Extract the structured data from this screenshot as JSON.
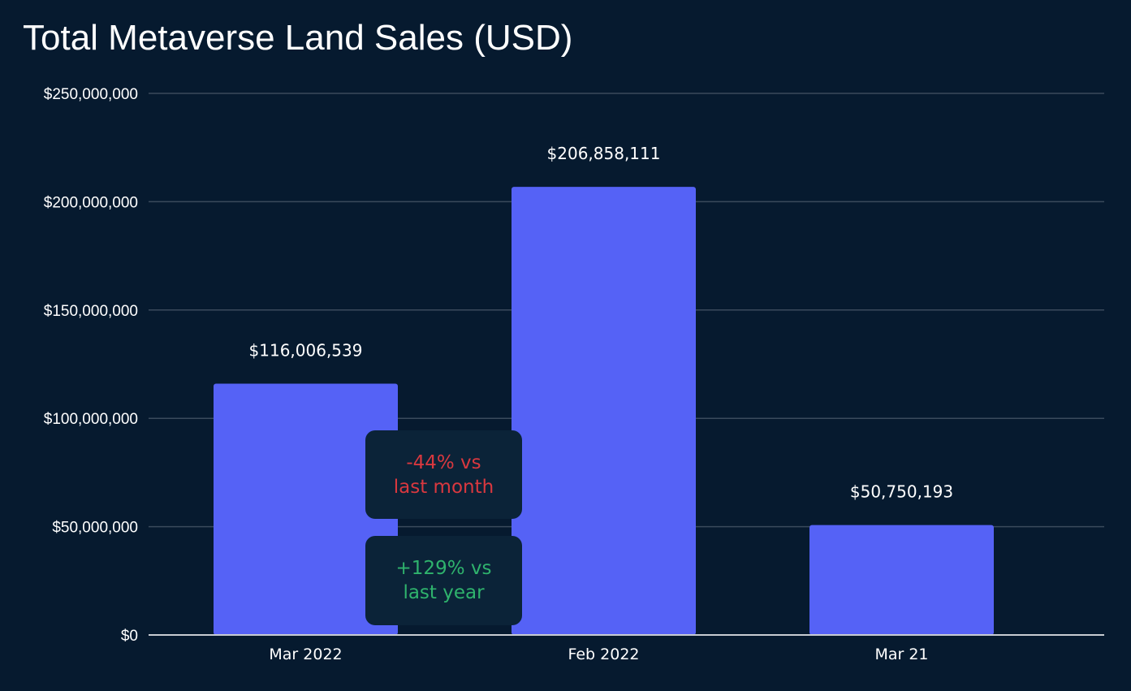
{
  "chart_data": {
    "type": "bar",
    "title": "Total Metaverse Land Sales (USD)",
    "categories": [
      "Mar 2022",
      "Feb 2022",
      "Mar 21"
    ],
    "values": [
      116006539,
      206858111,
      50750193
    ],
    "data_labels": [
      "$116,006,539",
      "$206,858,111",
      "$50,750,193"
    ],
    "ylim": [
      0,
      250000000
    ],
    "yticks": [
      0,
      50000000,
      100000000,
      150000000,
      200000000,
      250000000
    ],
    "ytick_labels": [
      "$0",
      "$50,000,000",
      "$100,000,000",
      "$150,000,000",
      "$200,000,000",
      "$250,000,000"
    ],
    "grid": true,
    "annotations": [
      {
        "line1": "-44% vs",
        "line2": "last month",
        "color": "#d9383f"
      },
      {
        "line1": "+129% vs",
        "line2": "last year",
        "color": "#2fb36d"
      }
    ],
    "colors": {
      "background": "#061a2f",
      "bar": "#5562f6",
      "grid": "#3a4a5c",
      "axis": "#c8ccd2",
      "callout_bg": "#0b2338"
    }
  }
}
